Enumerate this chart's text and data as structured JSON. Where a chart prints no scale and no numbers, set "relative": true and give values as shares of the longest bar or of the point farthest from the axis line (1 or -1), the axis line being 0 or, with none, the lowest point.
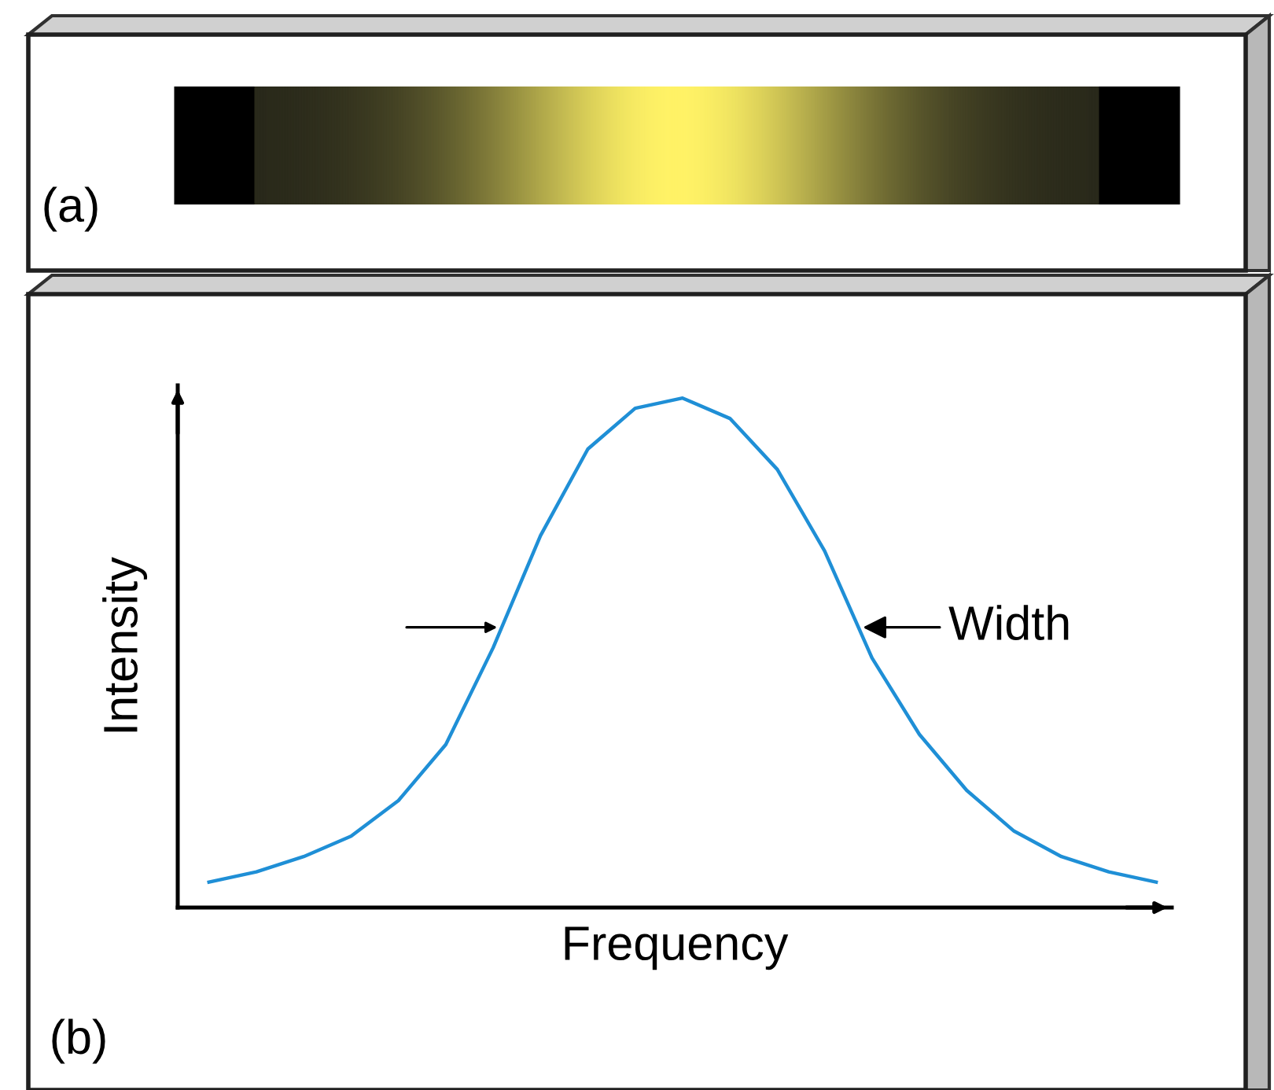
{
  "chart_data": {
    "type": "line",
    "relative": true,
    "xlabel": "Frequency",
    "ylabel": "Intensity",
    "categories": [
      null,
      null,
      null,
      null,
      null,
      null,
      null,
      null,
      null,
      null,
      null,
      null,
      null,
      null,
      null,
      null,
      null,
      null,
      null,
      null,
      null
    ],
    "series": [
      {
        "color": "#1f8fd6",
        "values": [
          0.05,
          0.07,
          0.1,
          0.14,
          0.21,
          0.32,
          0.51,
          0.73,
          0.9,
          0.98,
          1.0,
          0.96,
          0.86,
          0.7,
          0.49,
          0.34,
          0.23,
          0.15,
          0.1,
          0.07,
          0.05
        ]
      }
    ],
    "annotations": [
      "(a)",
      "(b)",
      "Width"
    ],
    "legend": false,
    "marker": "none",
    "line_style": "solid"
  }
}
